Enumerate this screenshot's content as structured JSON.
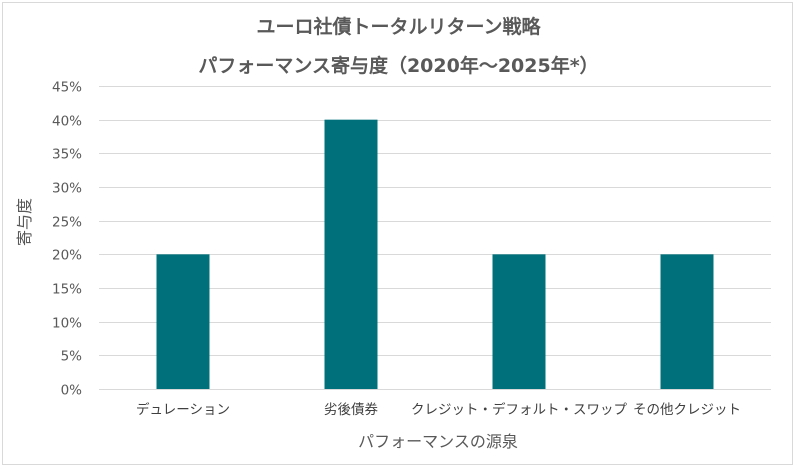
{
  "chart_data": {
    "type": "bar",
    "title": "ユーロ社債トータルリターン戦略",
    "subtitle": "パフォーマンス寄与度（2020年～2025年*）",
    "xlabel": "パフォーマンスの源泉",
    "ylabel": "寄与度",
    "categories": [
      "デュレーション",
      "劣後債券",
      "クレジット・デフォルト・スワップ",
      "その他クレジット"
    ],
    "values": [
      20,
      40,
      20,
      20
    ],
    "ylim": [
      0,
      45
    ],
    "ytick_step": 5,
    "ytick_suffix": "%",
    "grid": true,
    "legend": "none",
    "colors": {
      "bar": "#00707a",
      "grid": "#d9d9d9"
    }
  }
}
